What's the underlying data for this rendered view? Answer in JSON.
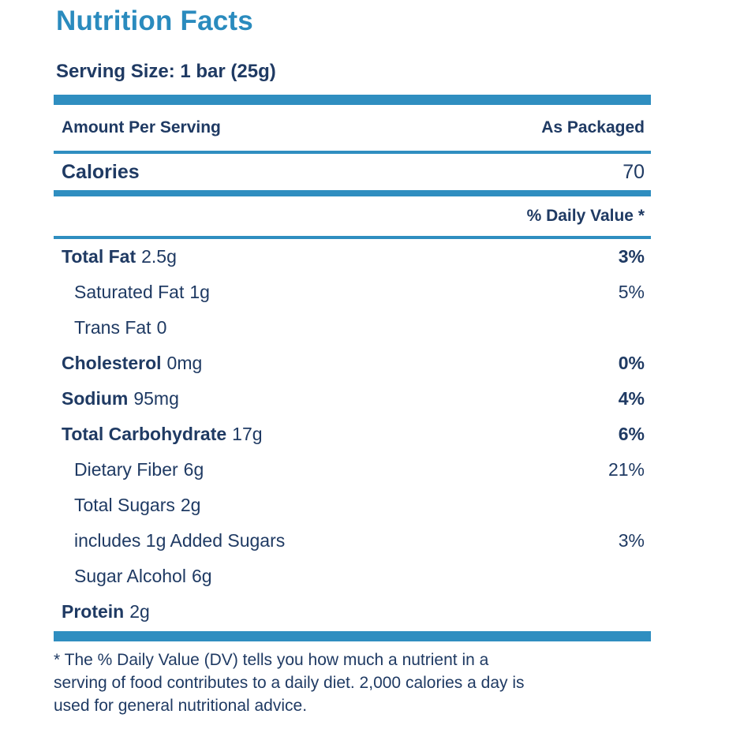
{
  "colors": {
    "accent_blue": "#2F8EC0",
    "title_blue": "#2A8BBE",
    "text_navy": "#1F3A63"
  },
  "title": "Nutrition Facts",
  "serving_size": "Serving Size: 1 bar (25g)",
  "header": {
    "amount_label": "Amount Per Serving",
    "column_label": "As Packaged"
  },
  "calories": {
    "label": "Calories",
    "value": "70"
  },
  "daily_value_header": "% Daily Value *",
  "nutrients": [
    {
      "name": "Total Fat",
      "amount": "2.5g",
      "dv": "3%"
    },
    {
      "name": "Saturated Fat",
      "amount": "1g",
      "dv": "5%"
    },
    {
      "name": "Trans Fat",
      "amount": "0",
      "dv": ""
    },
    {
      "name": "Cholesterol",
      "amount": "0mg",
      "dv": "0%"
    },
    {
      "name": "Sodium",
      "amount": "95mg",
      "dv": "4%"
    },
    {
      "name": "Total Carbohydrate",
      "amount": "17g",
      "dv": "6%"
    },
    {
      "name": "Dietary Fiber",
      "amount": "6g",
      "dv": "21%"
    },
    {
      "name": "Total Sugars",
      "amount": "2g",
      "dv": ""
    },
    {
      "name": "includes 1g Added Sugars",
      "amount": "",
      "dv": "3%"
    },
    {
      "name": "Sugar Alcohol",
      "amount": "6g",
      "dv": ""
    },
    {
      "name": "Protein",
      "amount": "2g",
      "dv": ""
    }
  ],
  "footnote": "* The % Daily Value (DV) tells you how much a nutrient in a\nserving of food contributes to a daily diet. 2,000 calories a day is\nused for general nutritional advice."
}
